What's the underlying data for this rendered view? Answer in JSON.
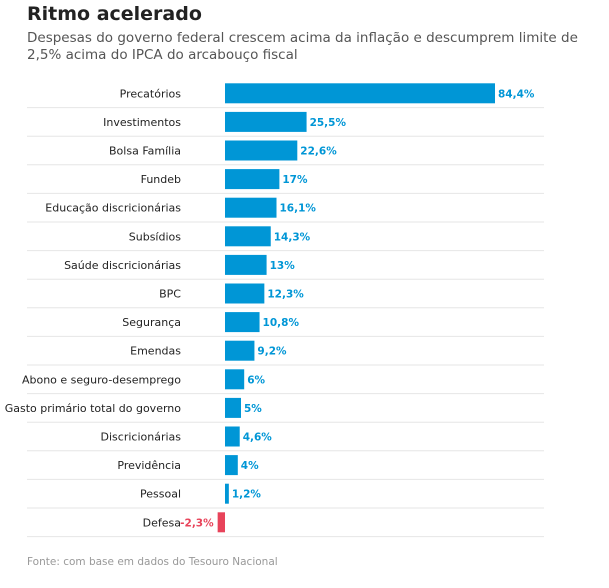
{
  "title": "Ritmo acelerado",
  "subtitle": "Despesas do governo federal crescem acima da inflação e descumprem limite de 2,5% acima do IPCA do arcabouço fiscal",
  "source": "Fonte: com base em dados do Tesouro Nacional",
  "colors": {
    "positive": "#0096d6",
    "negative": "#e8435a",
    "grid": "#e6e6e6"
  },
  "chart_data": {
    "type": "bar",
    "orientation": "horizontal",
    "grid": true,
    "categories": [
      "Precatórios",
      "Investimentos",
      "Bolsa Família",
      "Fundeb",
      "Educação discricionárias",
      "Subsídios",
      "Saúde discricionárias",
      "BPC",
      "Segurança",
      "Emendas",
      "Abono e seguro-desemprego",
      "Gasto primário total do governo",
      "Discricionárias",
      "Previdência",
      "Pessoal",
      "Defesa"
    ],
    "values": [
      84.4,
      25.5,
      22.6,
      17,
      16.1,
      14.3,
      13,
      12.3,
      10.8,
      9.2,
      6,
      5,
      4.6,
      4,
      1.2,
      -2.3
    ],
    "labels": [
      "84,4%",
      "25,5%",
      "22,6%",
      "17%",
      "16,1%",
      "14,3%",
      "13%",
      "12,3%",
      "10,8%",
      "9,2%",
      "6%",
      "5%",
      "4,6%",
      "4%",
      "1,2%",
      "-2,3%"
    ]
  }
}
